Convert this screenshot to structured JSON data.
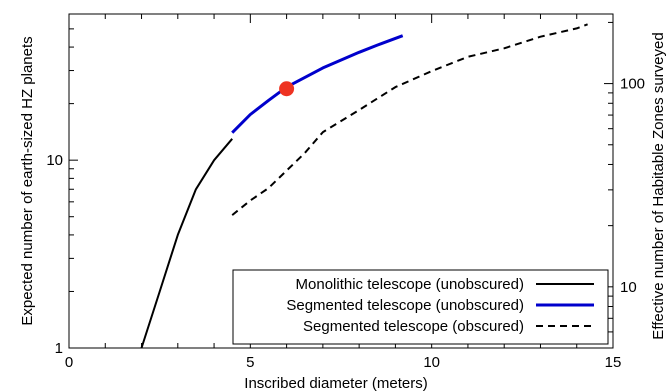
{
  "chart_data": {
    "type": "line",
    "xlabel": "Inscribed diameter (meters)",
    "ylabel": "Expected number of earth-sized HZ planets",
    "ylabel_right": "Effective number of Habitable Zones surveyed",
    "xlim": [
      0,
      15
    ],
    "ylim": [
      1,
      60
    ],
    "yscale": "log",
    "ylim_right": [
      5,
      220
    ],
    "yscale_right": "log",
    "x_ticks": [
      "0",
      "5",
      "10",
      "15"
    ],
    "y_ticks_left": [
      "1",
      "10"
    ],
    "y_ticks_right": [
      "10",
      "100"
    ],
    "legend_position": "bottom-right",
    "series": [
      {
        "name": "Monolithic telescope (unobscured)",
        "color": "#000000",
        "style": "solid",
        "x": [
          2.0,
          2.5,
          3.0,
          3.5,
          4.0,
          4.5
        ],
        "y": [
          1.0,
          2.0,
          4.0,
          7.0,
          10.0,
          13.0
        ]
      },
      {
        "name": "Segmented telescope (unobscured)",
        "color": "#0000cc",
        "style": "solid",
        "x": [
          4.5,
          5.0,
          5.5,
          6.0,
          7.0,
          8.0,
          8.5,
          9.2
        ],
        "y": [
          14.0,
          17.5,
          20.8,
          24.5,
          31.0,
          37.5,
          41.0,
          46.0
        ]
      },
      {
        "name": "Segmented telescope (obscured)",
        "color": "#000000",
        "style": "dashed",
        "x": [
          4.5,
          5.0,
          5.5,
          6.0,
          6.5,
          7.0,
          8.0,
          9.0,
          10.0,
          11.0,
          12.0,
          13.0,
          14.0,
          14.3
        ],
        "y": [
          5.1,
          6.1,
          7.1,
          8.8,
          10.9,
          14.1,
          18.5,
          24.5,
          29.8,
          35.5,
          39.4,
          45.4,
          50.3,
          52.9
        ]
      }
    ],
    "marker": {
      "x": 6.0,
      "y": 24.0,
      "color": "#ee3322"
    }
  }
}
